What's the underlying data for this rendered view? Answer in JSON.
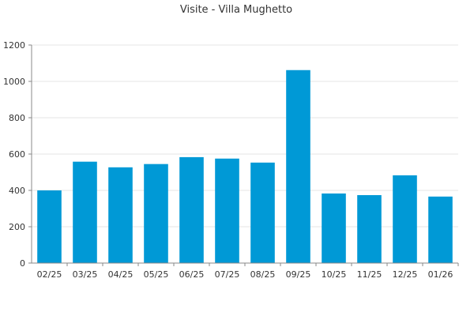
{
  "chart_data": {
    "type": "bar",
    "title": "Visite - Villa Mughetto",
    "xlabel": "",
    "ylabel": "",
    "categories": [
      "02/25",
      "03/25",
      "04/25",
      "05/25",
      "06/25",
      "07/25",
      "08/25",
      "09/25",
      "10/25",
      "11/25",
      "12/25",
      "01/26"
    ],
    "values": [
      400,
      558,
      527,
      545,
      583,
      575,
      553,
      1062,
      383,
      374,
      483,
      366
    ],
    "ylim": [
      0,
      1200
    ],
    "yticks": [
      0,
      200,
      400,
      600,
      800,
      1000,
      1200
    ],
    "bar_color": "#0099d6",
    "grid": true,
    "legend": "none"
  }
}
